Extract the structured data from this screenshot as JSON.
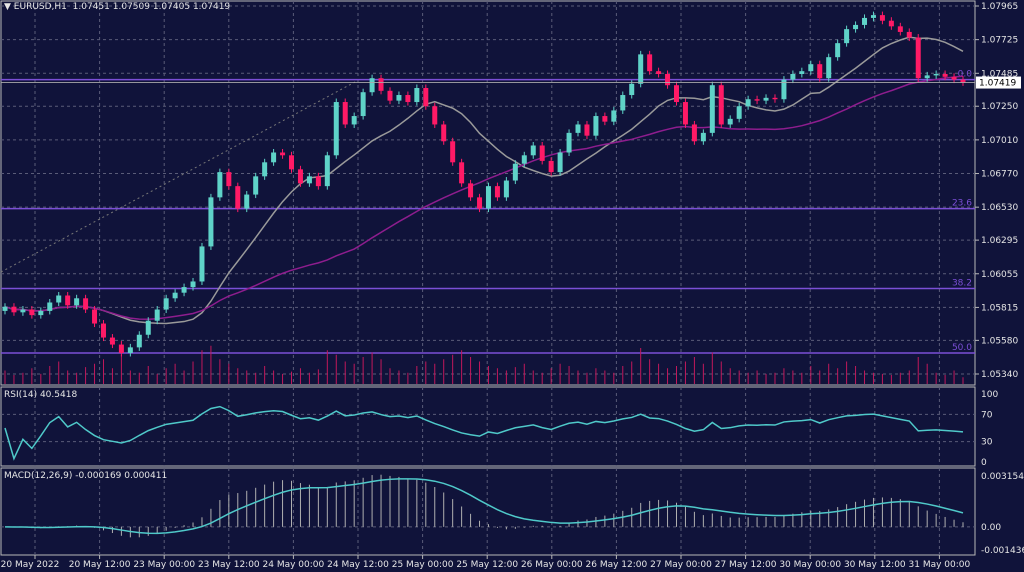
{
  "header": {
    "symbol": "EURUSD,H1",
    "open": "1.07451",
    "high": "1.07509",
    "low": "1.07405",
    "close": "1.07419",
    "menu_icon": "triangle-down-icon"
  },
  "colors": {
    "background": "#10133a",
    "bull": "#5fd3c8",
    "bear": "#ff1a66",
    "grid": "#5a5c78",
    "fib": "#7b4fd6",
    "ma_fast": "#9a9a9a",
    "ma_slow": "#8e1d8e",
    "volume": "#c2185b",
    "rsi": "#4fc9c9",
    "macd_hist": "#b0b0b0",
    "macd_signal": "#4fc9c9"
  },
  "chart_data": [
    {
      "type": "candlestick",
      "title": "EURUSD,H1",
      "price_axis_ticks": [
        "1.07965",
        "1.07725",
        "1.07485",
        "1.07250",
        "1.07010",
        "1.06770",
        "1.06530",
        "1.06295",
        "1.06055",
        "1.05815",
        "1.05580",
        "1.05340"
      ],
      "ylim": [
        1.0534,
        1.07965
      ],
      "current_price": "1.07419",
      "time_axis_ticks": [
        "20 May 2022",
        "20 May 12:00",
        "23 May 00:00",
        "23 May 12:00",
        "24 May 00:00",
        "24 May 12:00",
        "25 May 00:00",
        "25 May 12:00",
        "26 May 00:00",
        "26 May 12:00",
        "27 May 00:00",
        "27 May 12:00",
        "30 May 00:00",
        "30 May 12:00",
        "31 May 00:00"
      ],
      "grid": true,
      "closes": [
        1.0582,
        1.0578,
        1.058,
        1.0576,
        1.0579,
        1.0585,
        1.059,
        1.0583,
        1.0588,
        1.058,
        1.057,
        1.056,
        1.0555,
        1.0549,
        1.0553,
        1.0562,
        1.0572,
        1.058,
        1.0588,
        1.0592,
        1.0596,
        1.06,
        1.0625,
        1.066,
        1.0678,
        1.0668,
        1.0652,
        1.0662,
        1.0675,
        1.0685,
        1.0692,
        1.069,
        1.068,
        1.067,
        1.0675,
        1.0668,
        1.069,
        1.0728,
        1.0712,
        1.0718,
        1.0735,
        1.0745,
        1.0736,
        1.0729,
        1.0733,
        1.0728,
        1.0738,
        1.0725,
        1.0712,
        1.07,
        1.0685,
        1.067,
        1.066,
        1.0652,
        1.0668,
        1.066,
        1.0672,
        1.0684,
        1.069,
        1.0697,
        1.0686,
        1.0678,
        1.0692,
        1.0706,
        1.0712,
        1.0704,
        1.0718,
        1.0714,
        1.0722,
        1.0733,
        1.0741,
        1.0762,
        1.075,
        1.0748,
        1.074,
        1.0728,
        1.0712,
        1.07,
        1.0706,
        1.074,
        1.0712,
        1.0716,
        1.0725,
        1.073,
        1.0729,
        1.0731,
        1.073,
        1.0744,
        1.0748,
        1.075,
        1.0755,
        1.0745,
        1.076,
        1.077,
        1.078,
        1.0783,
        1.0788,
        1.079,
        1.0786,
        1.0782,
        1.0778,
        1.0774,
        1.0745,
        1.0747,
        1.0748,
        1.0746,
        1.0744,
        1.0742
      ],
      "volumes": [
        12,
        8,
        10,
        14,
        9,
        16,
        20,
        12,
        10,
        15,
        18,
        22,
        14,
        26,
        12,
        10,
        16,
        9,
        14,
        18,
        12,
        20,
        30,
        34,
        22,
        18,
        14,
        12,
        10,
        16,
        12,
        9,
        11,
        14,
        10,
        13,
        30,
        26,
        20,
        18,
        24,
        28,
        22,
        14,
        12,
        10,
        16,
        20,
        18,
        22,
        26,
        30,
        24,
        20,
        16,
        14,
        12,
        15,
        18,
        12,
        10,
        14,
        18,
        16,
        12,
        10,
        14,
        12,
        10,
        16,
        20,
        32,
        22,
        18,
        14,
        16,
        20,
        24,
        18,
        28,
        20,
        14,
        12,
        10,
        12,
        9,
        10,
        14,
        12,
        10,
        16,
        12,
        18,
        14,
        20,
        16,
        12,
        10,
        9,
        8,
        10,
        12,
        24,
        18,
        10,
        8,
        12,
        6
      ],
      "fibonacci": [
        {
          "label": "0.0",
          "price": 1.0744
        },
        {
          "label": "23.6",
          "price": 1.0652
        },
        {
          "label": "38.2",
          "price": 1.0595
        },
        {
          "label": "50.0",
          "price": 1.0549
        }
      ]
    },
    {
      "type": "line",
      "title": "RSI(14) 40.5418",
      "name": "RSI(14)",
      "value": "40.5418",
      "ylim": [
        0,
        100
      ],
      "ticks": [
        "100",
        "70",
        "30",
        "0"
      ]
    },
    {
      "type": "bar+line",
      "title": "MACD(12,26,9) -0.000169 0.000411",
      "name": "MACD(12,26,9)",
      "main_value": "-0.000169",
      "signal_value": "0.000411",
      "ylim": [
        -0.001436,
        0.003154
      ],
      "ticks": [
        "0.003154",
        "0.00",
        "-0.001436"
      ]
    }
  ]
}
